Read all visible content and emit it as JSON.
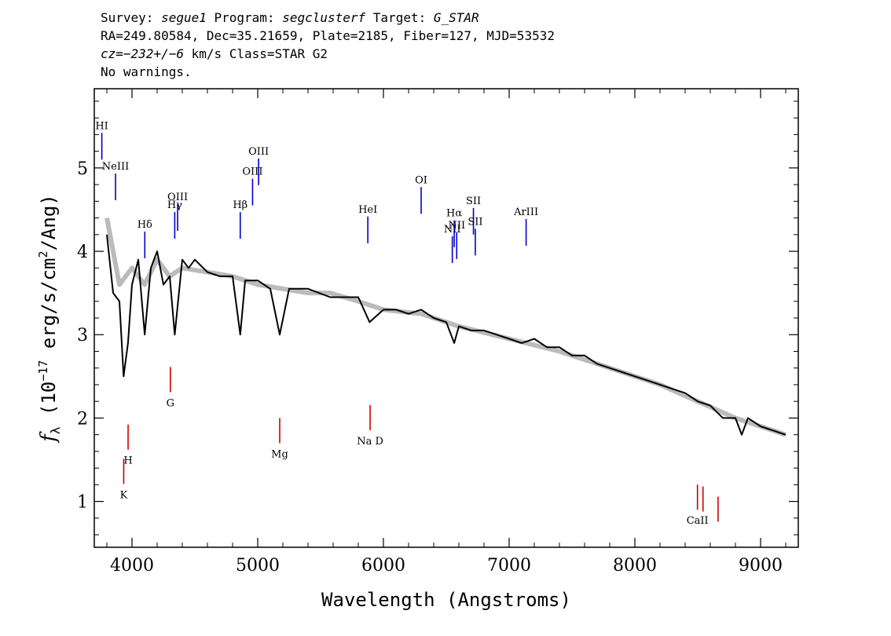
{
  "header": {
    "line1": {
      "survey_label": "Survey: ",
      "survey": "segue1",
      "program_label": " Program: ",
      "program": "segclusterf",
      "target_label": " Target: ",
      "target": "G_STAR"
    },
    "line2": "RA=249.80584, Dec=35.21659, Plate=2185, Fiber=127, MJD=53532",
    "line3": {
      "cz_label": "cz=",
      "cz": "−232+/−6",
      "rest": " km/s Class=STAR G2"
    },
    "line4": "No warnings."
  },
  "chart_data": {
    "type": "line",
    "xlabel": "Wavelength (Angstroms)",
    "ylabel": "fλ (10⁻¹⁷ erg/s/cm²/Ang)",
    "xlim": [
      3700,
      9300
    ],
    "ylim": [
      0.45,
      5.95
    ],
    "x_ticks": [
      4000,
      5000,
      6000,
      7000,
      8000,
      9000
    ],
    "y_ticks": [
      1,
      2,
      3,
      4,
      5
    ],
    "series": [
      {
        "color": "#000000",
        "x": [
          3800,
          3850,
          3900,
          3933,
          3968,
          4000,
          4050,
          4101,
          4150,
          4200,
          4250,
          4300,
          4340,
          4400,
          4450,
          4500,
          4600,
          4700,
          4800,
          4861,
          4900,
          5000,
          5100,
          5175,
          5250,
          5400,
          5577,
          5700,
          5800,
          5890,
          6000,
          6100,
          6200,
          6300,
          6400,
          6500,
          6563,
          6600,
          6700,
          6800,
          6900,
          7000,
          7100,
          7200,
          7300,
          7400,
          7500,
          7600,
          7700,
          7800,
          7900,
          8000,
          8100,
          8200,
          8300,
          8400,
          8500,
          8600,
          8700,
          8800,
          8850,
          8900,
          9000,
          9100,
          9200
        ],
        "y": [
          4.2,
          3.5,
          3.4,
          2.5,
          2.9,
          3.6,
          3.9,
          3.0,
          3.8,
          4.0,
          3.6,
          3.7,
          3.0,
          3.9,
          3.8,
          3.9,
          3.75,
          3.7,
          3.7,
          3.0,
          3.65,
          3.65,
          3.55,
          3.0,
          3.55,
          3.55,
          3.45,
          3.45,
          3.45,
          3.15,
          3.3,
          3.3,
          3.25,
          3.3,
          3.2,
          3.15,
          2.9,
          3.1,
          3.05,
          3.05,
          3.0,
          2.95,
          2.9,
          2.95,
          2.85,
          2.85,
          2.75,
          2.75,
          2.65,
          2.6,
          2.55,
          2.5,
          2.45,
          2.4,
          2.35,
          2.3,
          2.2,
          2.15,
          2.0,
          2.0,
          1.8,
          2.0,
          1.9,
          1.85,
          1.8
        ]
      },
      {
        "color": "#bbbbbb",
        "x": [
          3800,
          3900,
          4000,
          4100,
          4200,
          4300,
          4400,
          4600,
          4800,
          5000,
          5200,
          5400,
          5577,
          5800,
          6000,
          6300,
          6600,
          7000,
          7400,
          7800,
          8200,
          8500,
          8800,
          9000,
          9200
        ],
        "y": [
          4.4,
          3.6,
          3.8,
          3.6,
          3.9,
          3.7,
          3.8,
          3.75,
          3.7,
          3.6,
          3.55,
          3.5,
          3.5,
          3.4,
          3.3,
          3.25,
          3.1,
          2.95,
          2.8,
          2.6,
          2.4,
          2.2,
          2.0,
          1.9,
          1.8
        ]
      }
    ],
    "emission_lines": [
      {
        "label": "HI",
        "x": 3760
      },
      {
        "label": "NeIII",
        "x": 3869
      },
      {
        "label": "Hδ",
        "x": 4102
      },
      {
        "label": "Hγ",
        "x": 4340
      },
      {
        "label": "OIII",
        "x": 4363
      },
      {
        "label": "Hβ",
        "x": 4861
      },
      {
        "label": "OIII",
        "x": 4959
      },
      {
        "label": "OIII",
        "x": 5007
      },
      {
        "label": "HeI",
        "x": 5876
      },
      {
        "label": "OI",
        "x": 6300
      },
      {
        "label": "NII",
        "x": 6548
      },
      {
        "label": "Hα",
        "x": 6563
      },
      {
        "label": "NII",
        "x": 6583
      },
      {
        "label": "SII",
        "x": 6716
      },
      {
        "label": "SII",
        "x": 6731
      },
      {
        "label": "ArIII",
        "x": 7135
      }
    ],
    "absorption_lines": [
      {
        "label": "K",
        "x": 3934
      },
      {
        "label": "H",
        "x": 3969
      },
      {
        "label": "G",
        "x": 4305
      },
      {
        "label": "Mg",
        "x": 5175
      },
      {
        "label": "Na D",
        "x": 5894
      },
      {
        "label": "CaII",
        "x": 8498
      },
      {
        "label": "CaII",
        "x": 8542
      },
      {
        "label": "CaII",
        "x": 8662
      }
    ],
    "emission_color": "#0000cc",
    "absorption_color": "#cc0000"
  }
}
